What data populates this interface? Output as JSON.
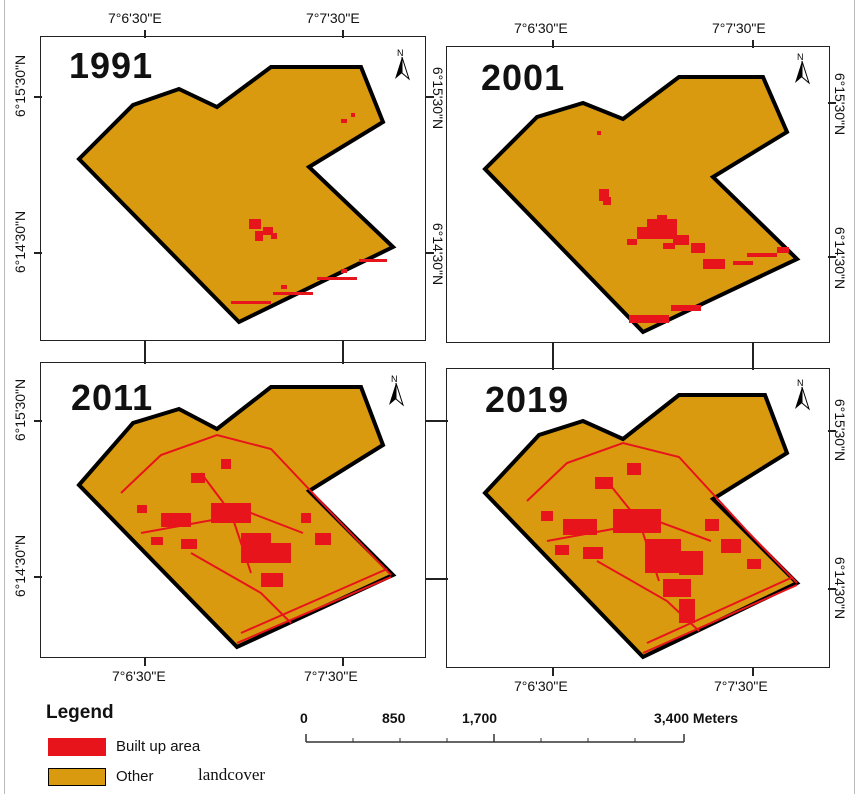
{
  "maps": [
    {
      "year": "1991"
    },
    {
      "year": "2001"
    },
    {
      "year": "2011"
    },
    {
      "year": "2019"
    }
  ],
  "coordinates": {
    "lon_west": "7°6'30\"E",
    "lon_east": "7°7'30\"E",
    "lat_north": "6°15'30\"N",
    "lat_south": "6°14'30\"N"
  },
  "north_arrow_label": "N",
  "legend": {
    "title": "Legend",
    "items": [
      {
        "label": "Built up area",
        "color": "#e8141b"
      },
      {
        "label": "Other",
        "label_extra": "landcover",
        "color": "#d99a0f"
      }
    ]
  },
  "scale_bar": {
    "labels": [
      "0",
      "850",
      "1,700",
      "3,400 Meters"
    ]
  },
  "colors": {
    "landcover": "#d99a0f",
    "built_up": "#e8141b",
    "boundary": "#000000"
  }
}
